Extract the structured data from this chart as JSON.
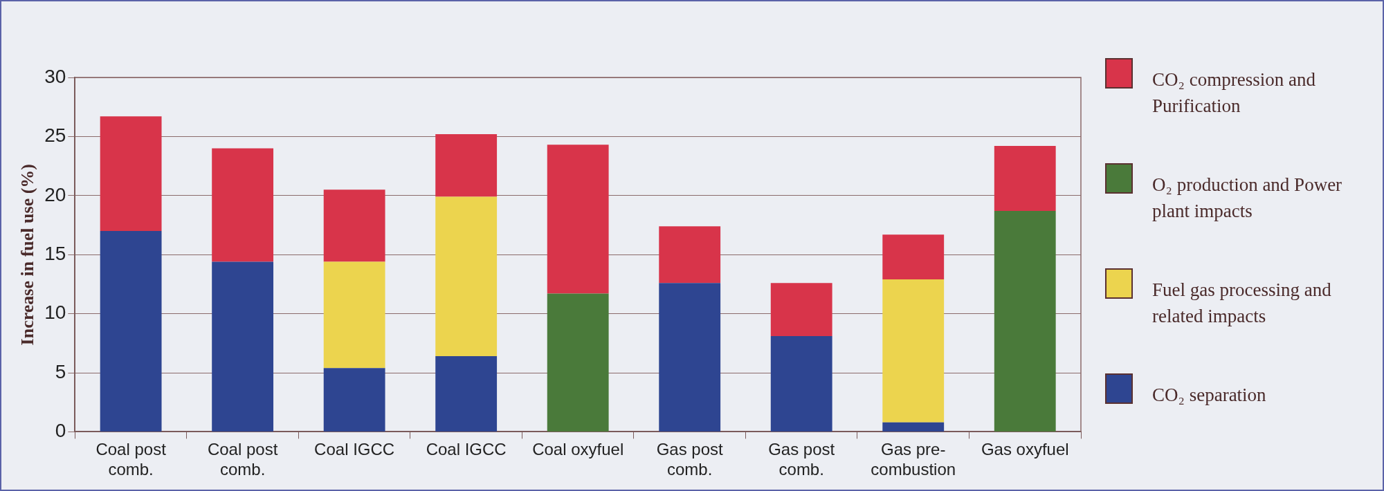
{
  "chart_data": {
    "type": "bar",
    "stacked": true,
    "ylabel": "Increase in fuel use (%)",
    "categories": [
      "Coal post comb.",
      "Coal post comb.",
      "Coal IGCC",
      "Coal IGCC",
      "Coal oxyfuel",
      "Gas post comb.",
      "Gas post comb.",
      "Gas pre-combustion",
      "Gas oxyfuel"
    ],
    "series": [
      {
        "name": "CO₂ separation",
        "color": "#2e4591",
        "values": [
          17.0,
          14.4,
          5.4,
          6.4,
          null,
          12.6,
          8.1,
          0.8,
          null
        ]
      },
      {
        "name": "Fuel gas processing and related impacts",
        "color": "#ecd44e",
        "values": [
          null,
          null,
          9.0,
          13.5,
          null,
          null,
          null,
          12.1,
          null
        ]
      },
      {
        "name": "O₂ production and Power plant impacts",
        "color": "#4a7a3a",
        "values": [
          null,
          null,
          null,
          null,
          11.7,
          null,
          null,
          null,
          18.7
        ]
      },
      {
        "name": "CO₂ compression and Purification",
        "color": "#d8344a",
        "values": [
          9.7,
          9.6,
          6.1,
          5.3,
          12.6,
          4.8,
          4.5,
          3.8,
          5.5
        ]
      }
    ],
    "ylim": [
      0,
      30
    ],
    "yticks": [
      0,
      5,
      10,
      15,
      20,
      25,
      30
    ],
    "grid": "y",
    "legend": "right"
  }
}
